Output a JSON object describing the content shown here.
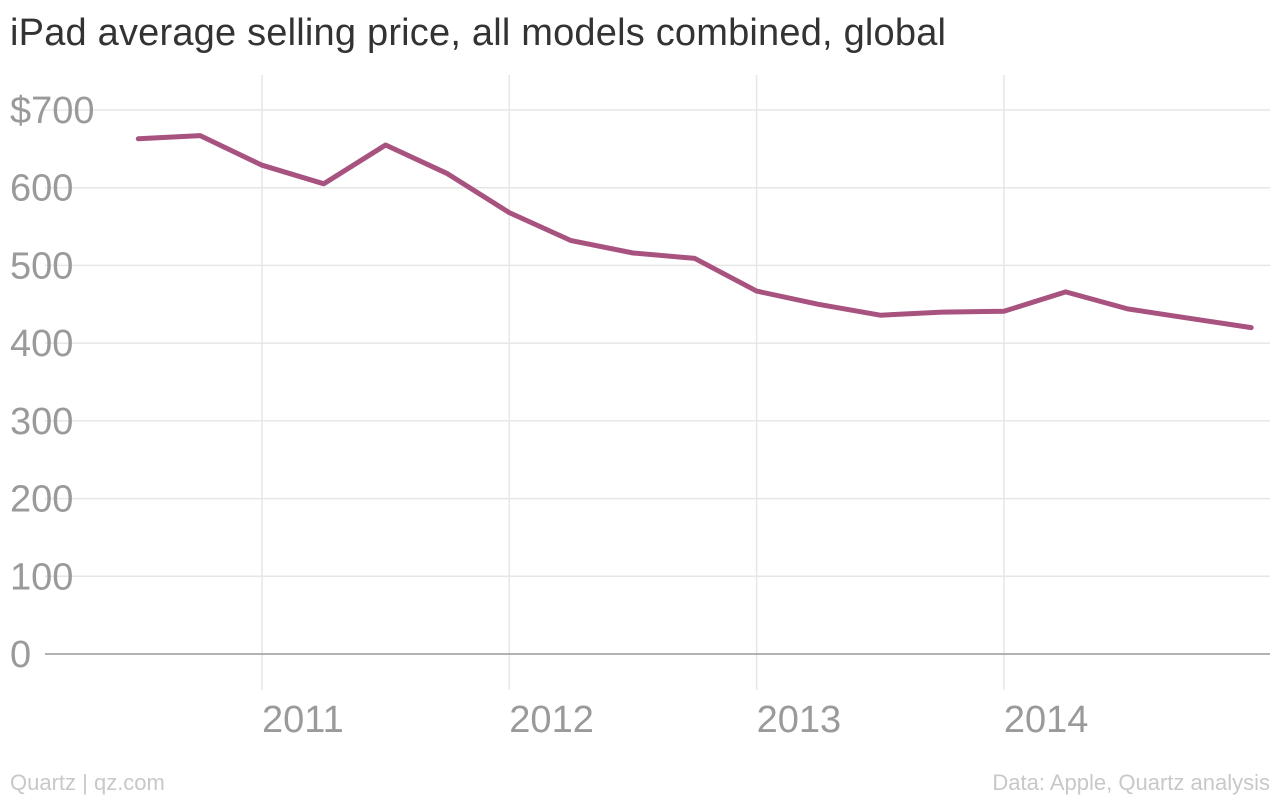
{
  "title": "iPad average selling price, all models combined, global",
  "footer": {
    "source_left": "Quartz | qz.com",
    "source_right": "Data: Apple, Quartz analysis"
  },
  "colors": {
    "line": "#a8527f",
    "grid": "#e6e6e6",
    "axis": "#999999",
    "tick_text": "#9a9a9a",
    "title": "#333333",
    "footer": "#c8c8c8"
  },
  "chart_data": {
    "type": "line",
    "title": "iPad average selling price, all models combined, global",
    "xlabel": "",
    "ylabel": "",
    "ylim": [
      0,
      700
    ],
    "xlim": [
      2010.25,
      2014.95
    ],
    "grid": true,
    "y_ticks": [
      0,
      100,
      200,
      300,
      400,
      500,
      600,
      700
    ],
    "y_tick_labels": [
      "0",
      "100",
      "200",
      "300",
      "400",
      "500",
      "600",
      "$700"
    ],
    "x_ticks": [
      2011,
      2012,
      2013,
      2014
    ],
    "x_tick_labels": [
      "2011",
      "2012",
      "2013",
      "2014"
    ],
    "series": [
      {
        "x": [
          2010.5,
          2010.75,
          2011.0,
          2011.25,
          2011.5,
          2011.75,
          2012.0,
          2012.25,
          2012.5,
          2012.75,
          2013.0,
          2013.25,
          2013.5,
          2013.75,
          2014.0,
          2014.25,
          2014.5,
          2014.75,
          2015.0
        ],
        "values": [
          663,
          667,
          629,
          605,
          655,
          618,
          568,
          532,
          516,
          509,
          467,
          450,
          436,
          440,
          441,
          466,
          444,
          432,
          420
        ]
      }
    ]
  }
}
